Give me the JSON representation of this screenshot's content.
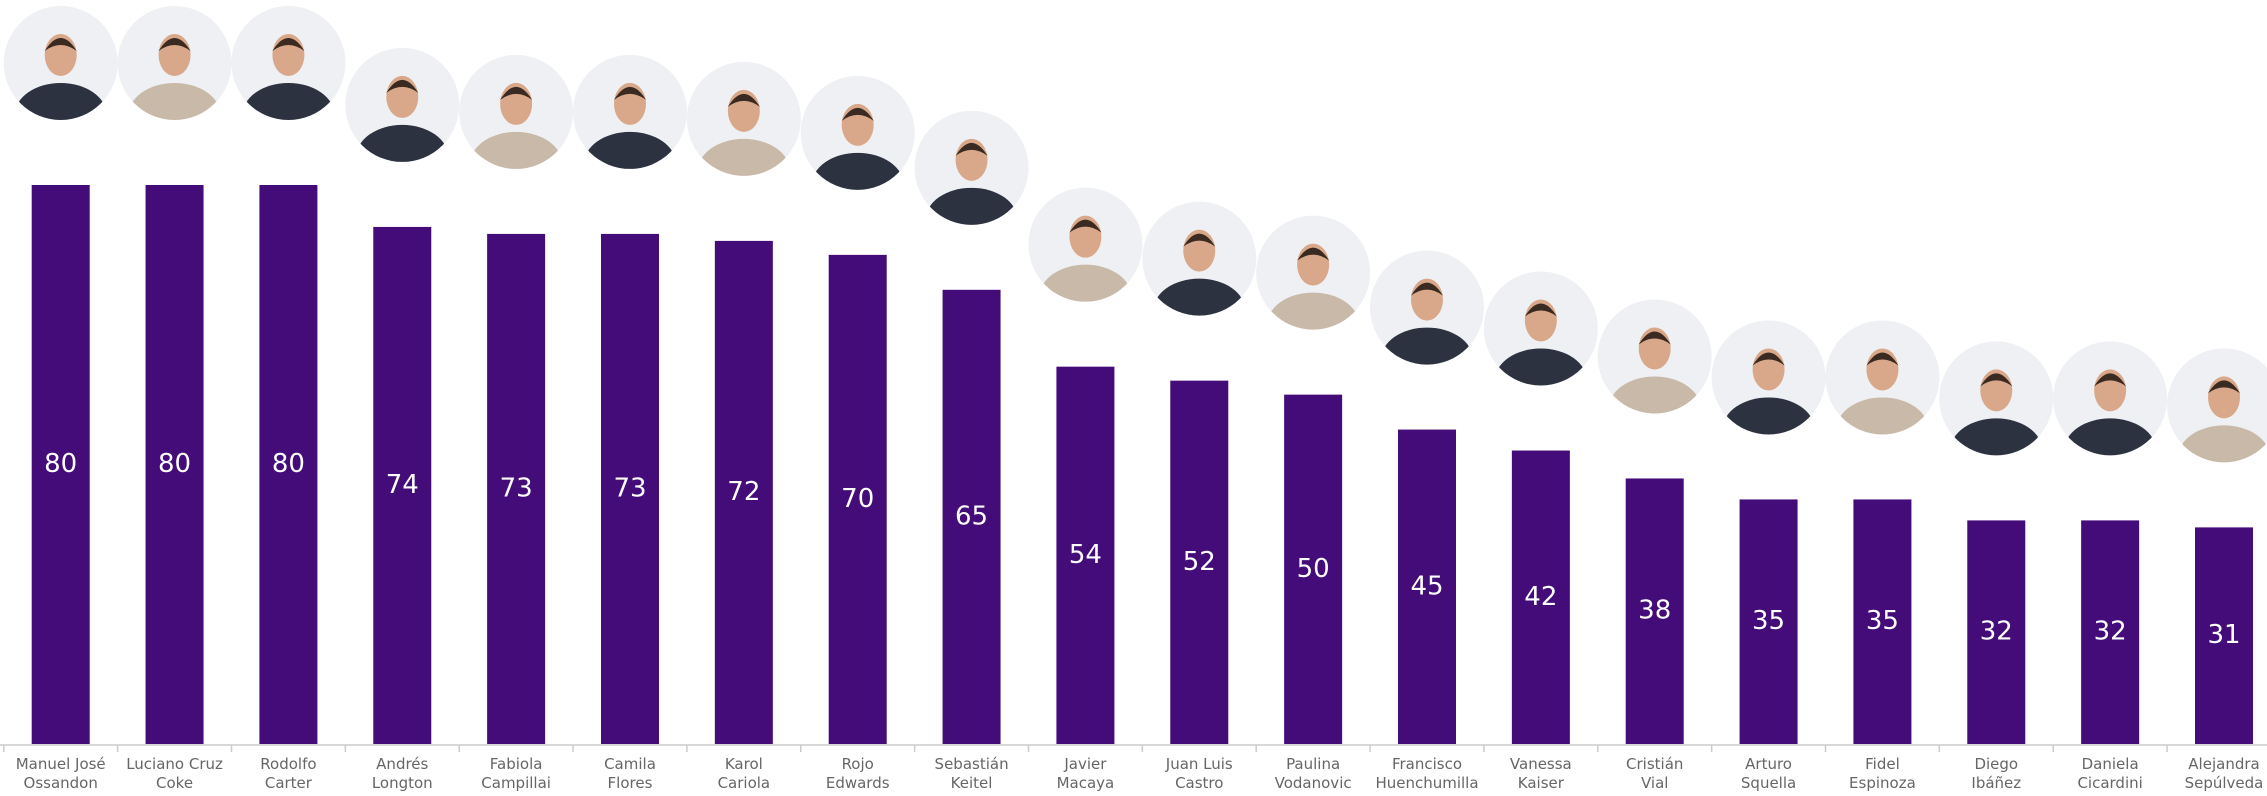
{
  "chart_data": {
    "type": "bar",
    "categories": [
      "Manuel José\nOssandon",
      "Luciano Cruz\nCoke",
      "Rodolfo\nCarter",
      "Andrés\nLongton",
      "Fabiola\nCampillai",
      "Camila\nFlores",
      "Karol\nCariola",
      "Rojo\nEdwards",
      "Sebastián\nKeitel",
      "Javier\nMacaya",
      "Juan Luis\nCastro",
      "Paulina\nVodanovic",
      "Francisco\nHuenchumilla",
      "Vanessa\nKaiser",
      "Cristián\nVial",
      "Arturo\nSquella",
      "Fidel\nEspinoza",
      "Diego\nIbáñez",
      "Daniela\nCicardini",
      "Alejandra\nSepúlveda"
    ],
    "values": [
      80,
      80,
      80,
      74,
      73,
      73,
      72,
      70,
      65,
      54,
      52,
      50,
      45,
      42,
      38,
      35,
      35,
      32,
      32,
      31
    ],
    "color": "#430c78",
    "ylim": [
      0,
      80
    ]
  }
}
